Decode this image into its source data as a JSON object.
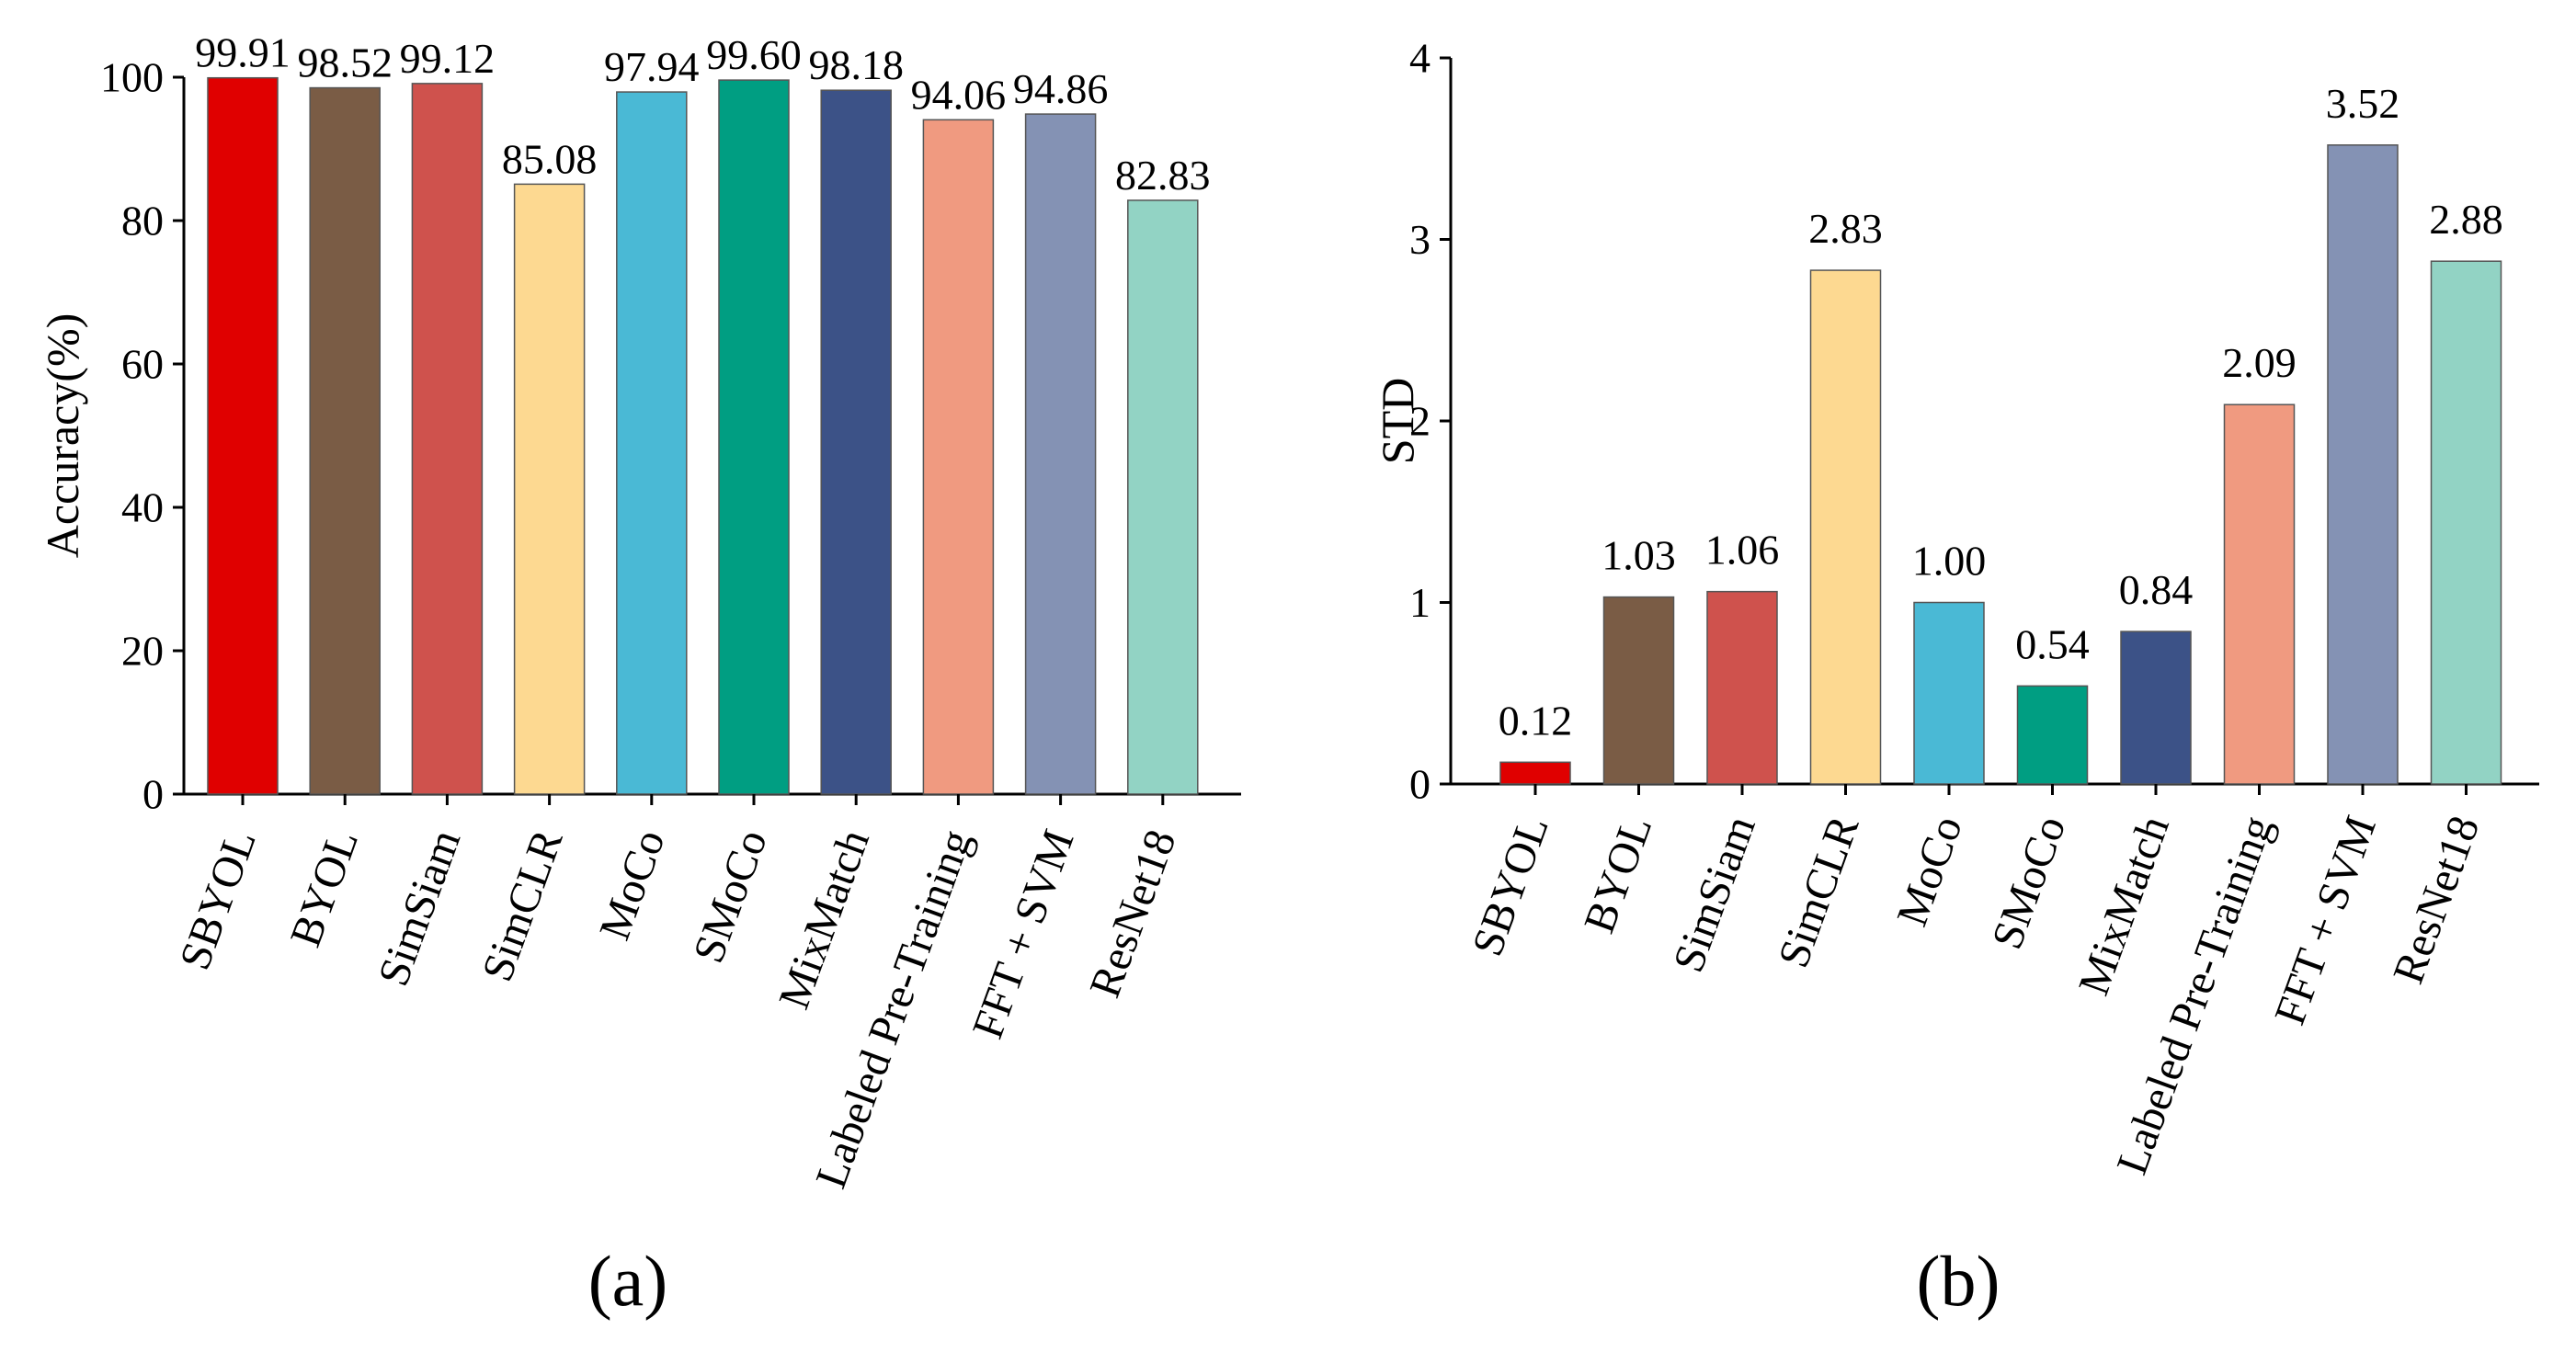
{
  "chart_data": [
    {
      "type": "bar",
      "panel_label": "(a)",
      "title": "",
      "xlabel": "",
      "ylabel": "Accuracy(%)",
      "ylim": [
        0,
        100
      ],
      "yticks": [
        0,
        20,
        40,
        60,
        80,
        100
      ],
      "ytick_labels": [
        "0",
        "20",
        "40",
        "60",
        "80",
        "100"
      ],
      "grid": false,
      "categories": [
        "SBYOL",
        "BYOL",
        "SimSiam",
        "SimCLR",
        "MoCo",
        "SMoCo",
        "MixMatch",
        "Labeled Pre-Training",
        "FFT + SVM",
        "ResNet18"
      ],
      "values": [
        99.91,
        98.52,
        99.12,
        85.08,
        97.94,
        99.6,
        98.18,
        94.06,
        94.86,
        82.83
      ],
      "value_labels": [
        "99.91",
        "98.52",
        "99.12",
        "85.08",
        "97.94",
        "99.60",
        "98.18",
        "94.06",
        "94.86",
        "82.83"
      ],
      "colors": [
        "#e00000",
        "#7a5c45",
        "#cf524d",
        "#fdd991",
        "#4ab9d5",
        "#009e82",
        "#3c5287",
        "#f09a80",
        "#8492b4",
        "#92d3c4"
      ]
    },
    {
      "type": "bar",
      "panel_label": "(b)",
      "title": "",
      "xlabel": "",
      "ylabel": "STD",
      "ylim": [
        0,
        4
      ],
      "yticks": [
        0,
        1,
        2,
        3,
        4
      ],
      "ytick_labels": [
        "0",
        "1",
        "2",
        "3",
        "4"
      ],
      "grid": false,
      "categories": [
        "SBYOL",
        "BYOL",
        "SimSiam",
        "SimCLR",
        "MoCo",
        "SMoCo",
        "MixMatch",
        "Labeled Pre-Training",
        "FFT + SVM",
        "ResNet18"
      ],
      "values": [
        0.12,
        1.03,
        1.06,
        2.83,
        1.0,
        0.54,
        0.84,
        2.09,
        3.52,
        2.88
      ],
      "value_labels": [
        "0.12",
        "1.03",
        "1.06",
        "2.83",
        "1.00",
        "0.54",
        "0.84",
        "2.09",
        "3.52",
        "2.88"
      ],
      "colors": [
        "#e00000",
        "#7a5c45",
        "#cf524d",
        "#fdd991",
        "#4ab9d5",
        "#009e82",
        "#3c5287",
        "#f09a80",
        "#8492b4",
        "#92d3c4"
      ]
    }
  ]
}
